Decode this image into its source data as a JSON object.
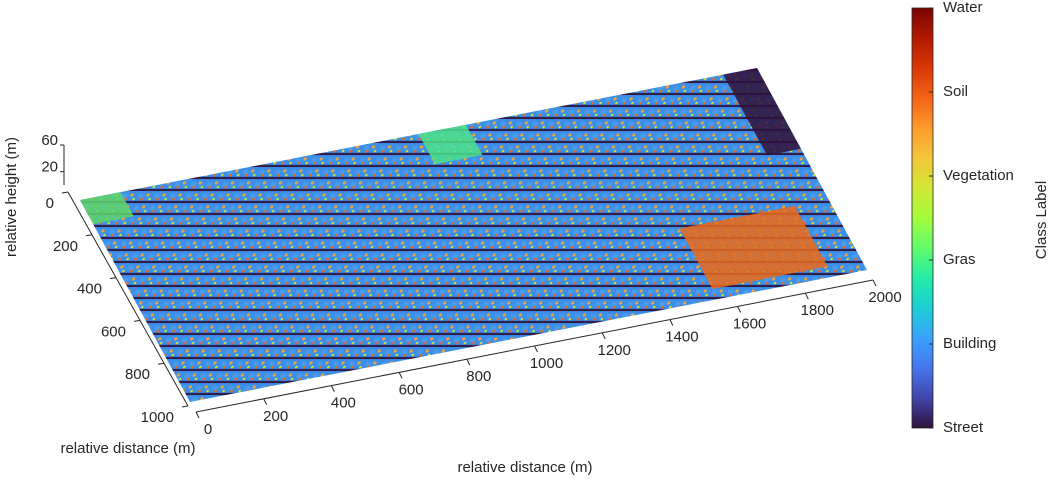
{
  "chart_data": {
    "type": "scatter3",
    "xlabel": "relative distance (m)",
    "ylabel": "relative distance (m)",
    "zlabel": "relative height (m)",
    "xlim": [
      0,
      2000
    ],
    "xticks": [
      0,
      200,
      400,
      600,
      800,
      1000,
      1200,
      1400,
      1600,
      1800,
      2000
    ],
    "ylim": [
      0,
      1000
    ],
    "yticks": [
      0,
      200,
      400,
      600,
      800,
      1000
    ],
    "zlim": [
      0,
      60
    ],
    "zticks": [
      20,
      60
    ],
    "colorbar": {
      "label": "Class Label",
      "ticks": [
        "Street",
        "Building",
        "Gras",
        "Vegetation",
        "Soil",
        "Water"
      ],
      "colors": [
        "#30123b",
        "#4145ab",
        "#4675ed",
        "#39a2fc",
        "#1bcfd4",
        "#24eca6",
        "#61fc6c",
        "#a4fc3b",
        "#d1e834",
        "#f3c63a",
        "#fe9b2d",
        "#f36315",
        "#d93806",
        "#b11901",
        "#7a0402"
      ]
    }
  }
}
